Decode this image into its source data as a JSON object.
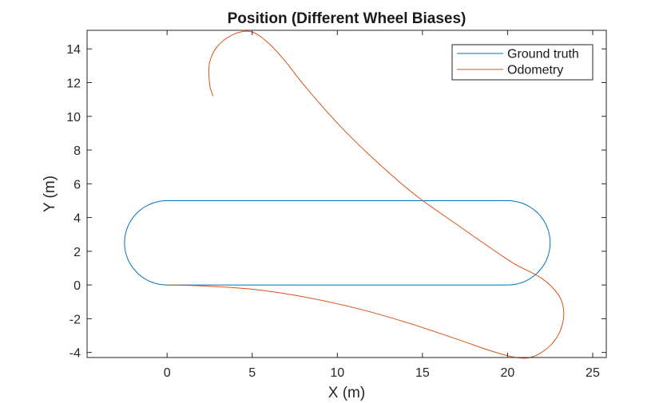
{
  "chart_data": {
    "type": "line",
    "title": "Position (Different Wheel Biases)",
    "xlabel": "X (m)",
    "ylabel": "Y (m)",
    "xlim": [
      -4.7,
      25.8
    ],
    "ylim": [
      -4.3,
      15.1
    ],
    "xticks": [
      0,
      5,
      10,
      15,
      20,
      25
    ],
    "yticks": [
      -4,
      -2,
      0,
      2,
      4,
      6,
      8,
      10,
      12,
      14
    ],
    "grid": false,
    "legend_position": "top-right",
    "series": [
      {
        "name": "Ground truth",
        "color": "#0072BD",
        "shape": "stadium",
        "straight_x": [
          0,
          20
        ],
        "y_bottom": 0,
        "y_top": 5,
        "turn_radius": 2.5
      },
      {
        "name": "Odometry",
        "color": "#D95319",
        "x": [
          0,
          2,
          5,
          8,
          11,
          14,
          17,
          19,
          20.5,
          21.5,
          22.5,
          23.1,
          23.3,
          23.0,
          22.0,
          20.5,
          19.5,
          17,
          14.5,
          12,
          10,
          8,
          7,
          6,
          5,
          4,
          3,
          2.5,
          2.5,
          2.7
        ],
        "y": [
          0,
          -0.05,
          -0.25,
          -0.7,
          -1.35,
          -2.2,
          -3.2,
          -3.9,
          -4.3,
          -4.25,
          -3.6,
          -2.7,
          -1.6,
          -0.6,
          0.4,
          1.2,
          1.85,
          3.6,
          5.4,
          7.6,
          9.6,
          11.9,
          13.2,
          14.3,
          15.0,
          14.9,
          14.2,
          13.2,
          11.9,
          11.2
        ]
      }
    ]
  }
}
